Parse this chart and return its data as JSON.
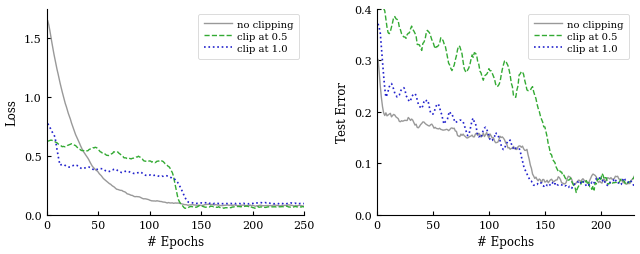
{
  "left": {
    "xlabel": "# Epochs",
    "ylabel": "Loss",
    "xlim": [
      0,
      250
    ],
    "ylim": [
      0,
      1.75
    ],
    "yticks": [
      0,
      0.5,
      1.0,
      1.5
    ],
    "xticks": [
      0,
      50,
      100,
      150,
      200,
      250
    ],
    "legend_loc": "upper right"
  },
  "right": {
    "xlabel": "# Epochs",
    "ylabel": "Test Error",
    "xlim": [
      0,
      230
    ],
    "ylim": [
      0,
      0.4
    ],
    "yticks": [
      0,
      0.1,
      0.2,
      0.3,
      0.4
    ],
    "xticks": [
      0,
      50,
      100,
      150,
      200
    ],
    "legend_loc": "upper right"
  },
  "no_clipping": {
    "color": "#999999",
    "linestyle": "-",
    "linewidth": 1.0,
    "label": "no clipping"
  },
  "clip05": {
    "color": "#33aa33",
    "linestyle": "--",
    "linewidth": 1.0,
    "label": "clip at 0.5"
  },
  "clip10": {
    "color": "#2222cc",
    "linestyle": ":",
    "linewidth": 1.2,
    "label": "clip at 1.0"
  },
  "background_color": "#ffffff",
  "font_family": "DejaVu Serif"
}
